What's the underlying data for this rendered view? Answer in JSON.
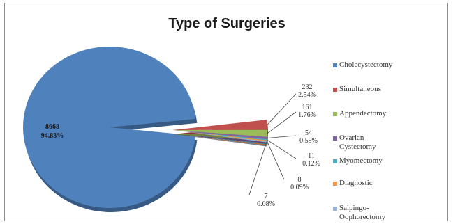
{
  "chart_data": {
    "type": "pie",
    "title": "Type of Surgeries",
    "legend_position": "right",
    "slices": [
      {
        "name": "Cholecystectomy",
        "value": 8668,
        "label_value": "8668",
        "label_pct": "94.83%",
        "color": "#4f81bd"
      },
      {
        "name": "Simultaneous",
        "value": 232,
        "label_value": "232",
        "label_pct": "2.54%",
        "color": "#c0504d"
      },
      {
        "name": "Appendectomy",
        "value": 161,
        "label_value": "161",
        "label_pct": "1.76%",
        "color": "#9bbb59"
      },
      {
        "name": "Ovarian Cystectomy",
        "value": 54,
        "label_value": "54",
        "label_pct": "0.59%",
        "color": "#8064a2"
      },
      {
        "name": "Myomectomy",
        "value": 11,
        "label_value": "11",
        "label_pct": "0.12%",
        "color": "#4bacc6"
      },
      {
        "name": "Diagnostic",
        "value": 8,
        "label_value": "8",
        "label_pct": "0.09%",
        "color": "#f79646"
      },
      {
        "name": "Salpingo-Oophorectomy",
        "value": 7,
        "label_value": "7",
        "label_pct": "0.08%",
        "color": "#95b3d7"
      }
    ],
    "legend_labels": [
      "Cholecystectomy",
      "Simultaneous",
      "Appendectomy",
      "Ovarian\nCystectomy",
      "Myomectomy",
      "Diagnostic",
      "Salpingo-\nOophorectomy"
    ]
  }
}
